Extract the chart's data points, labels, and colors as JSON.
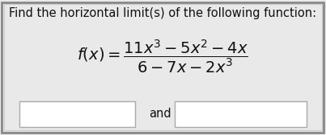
{
  "bg_color": "#e9e9e9",
  "border_color": "#888888",
  "inner_border_color": "#cccccc",
  "title_text": "Find the horizontal limit(s) of the following function:",
  "title_fontsize": 10.5,
  "formula_fontsize": 14,
  "math_formula": "$f(x) = \\dfrac{11x^3 - 5x^2 - 4x}{6 - 7x - 2x^3}$",
  "and_text": "and",
  "box_color": "#ffffff",
  "text_color": "#111111",
  "title_color": "#111111",
  "and_fontsize": 10.5,
  "figwidth": 4.03,
  "figheight": 1.68,
  "dpi": 100
}
